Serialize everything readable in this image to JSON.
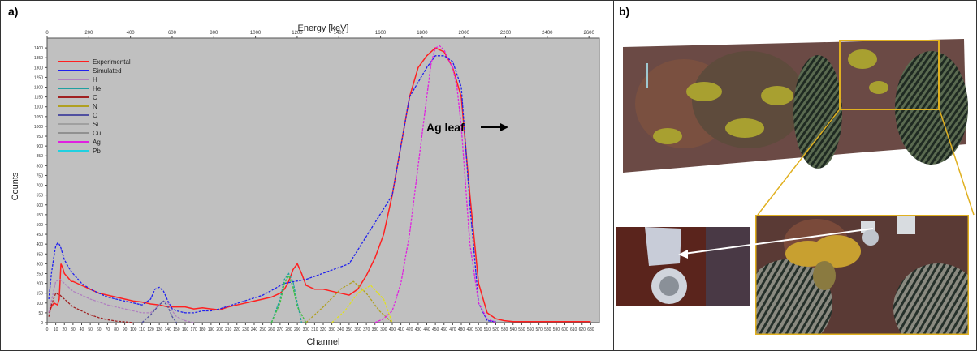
{
  "panels": {
    "a_label": "a)",
    "b_label": "b)"
  },
  "chart_data": {
    "type": "line",
    "top_axis_label": "Energy [keV]",
    "xlabel": "Channel",
    "ylabel": "Counts",
    "annotation": "Ag leaf",
    "xlim": [
      0,
      640
    ],
    "ylim": [
      0,
      1450
    ],
    "energy_ticks": [
      0,
      200,
      400,
      600,
      800,
      1000,
      1200,
      1400,
      1600,
      1800,
      2000,
      2200,
      2400,
      2600
    ],
    "channel_ticks": [
      0,
      10,
      20,
      30,
      40,
      50,
      60,
      70,
      80,
      90,
      100,
      110,
      120,
      130,
      140,
      150,
      160,
      170,
      180,
      190,
      200,
      210,
      220,
      230,
      240,
      250,
      260,
      270,
      280,
      290,
      300,
      310,
      320,
      330,
      340,
      350,
      360,
      370,
      380,
      390,
      400,
      410,
      420,
      430,
      440,
      450,
      460,
      470,
      480,
      490,
      500,
      510,
      520,
      530,
      540,
      550,
      560,
      570,
      580,
      590,
      600,
      610,
      620,
      630
    ],
    "y_ticks": [
      0,
      50,
      100,
      150,
      200,
      250,
      300,
      350,
      400,
      450,
      500,
      550,
      600,
      650,
      700,
      750,
      800,
      850,
      900,
      950,
      1000,
      1050,
      1100,
      1150,
      1200,
      1250,
      1300,
      1350,
      1400
    ],
    "legend": [
      "Experimental",
      "Simulated",
      "H",
      "He",
      "C",
      "N",
      "O",
      "Si",
      "Cu",
      "Ag",
      "Pb"
    ],
    "series": [
      {
        "name": "Experimental",
        "color": "#ff2020",
        "x": [
          2,
          5,
          8,
          10,
          12,
          14,
          16,
          18,
          20,
          22,
          24,
          26,
          28,
          30,
          40,
          50,
          60,
          70,
          80,
          90,
          100,
          110,
          120,
          130,
          140,
          150,
          160,
          170,
          180,
          190,
          200,
          210,
          220,
          230,
          240,
          250,
          260,
          270,
          275,
          280,
          285,
          290,
          295,
          300,
          310,
          320,
          330,
          340,
          350,
          360,
          370,
          380,
          390,
          400,
          410,
          420,
          430,
          440,
          450,
          460,
          470,
          480,
          490,
          500,
          510,
          520,
          530,
          540,
          550,
          560,
          570,
          580,
          590,
          600,
          610,
          620,
          630
        ],
        "y": [
          50,
          80,
          100,
          95,
          90,
          120,
          300,
          280,
          250,
          240,
          230,
          220,
          210,
          210,
          190,
          170,
          150,
          140,
          130,
          120,
          110,
          105,
          95,
          90,
          80,
          80,
          80,
          70,
          75,
          70,
          65,
          80,
          90,
          100,
          110,
          120,
          130,
          150,
          170,
          210,
          270,
          300,
          250,
          190,
          170,
          170,
          160,
          150,
          140,
          170,
          240,
          330,
          450,
          650,
          900,
          1150,
          1300,
          1360,
          1400,
          1380,
          1300,
          1150,
          650,
          200,
          50,
          20,
          10,
          5,
          5,
          5,
          5,
          5,
          5,
          5,
          5,
          5,
          5
        ]
      },
      {
        "name": "Simulated",
        "color": "#2020ee",
        "x": [
          2,
          5,
          8,
          10,
          12,
          14,
          16,
          18,
          20,
          25,
          30,
          40,
          50,
          60,
          70,
          80,
          90,
          100,
          110,
          120,
          125,
          130,
          135,
          140,
          145,
          150,
          160,
          170,
          180,
          190,
          200,
          250,
          275,
          300,
          350,
          400,
          420,
          440,
          450,
          460,
          470,
          480,
          490,
          500,
          510,
          520
        ],
        "y": [
          120,
          250,
          340,
          390,
          405,
          400,
          380,
          350,
          320,
          280,
          250,
          200,
          170,
          150,
          130,
          120,
          110,
          100,
          90,
          120,
          170,
          180,
          160,
          110,
          70,
          60,
          50,
          50,
          60,
          60,
          70,
          140,
          200,
          220,
          300,
          650,
          1150,
          1300,
          1360,
          1360,
          1330,
          1200,
          600,
          100,
          10,
          5
        ]
      },
      {
        "name": "H",
        "color": "#b080c0",
        "x": [
          2,
          5,
          10,
          15,
          20,
          30,
          40,
          50,
          60,
          70,
          80,
          90,
          100,
          110,
          120,
          130,
          135,
          140,
          145,
          150,
          160,
          170
        ],
        "y": [
          50,
          110,
          210,
          220,
          200,
          160,
          140,
          120,
          105,
          90,
          80,
          70,
          60,
          50,
          50,
          90,
          110,
          100,
          60,
          30,
          10,
          0
        ]
      },
      {
        "name": "He",
        "color": "#20a0a0",
        "x": [
          260,
          270,
          275,
          280,
          285,
          290,
          295
        ],
        "y": [
          0,
          120,
          220,
          250,
          210,
          100,
          0
        ]
      },
      {
        "name": "C",
        "color": "#a02020",
        "x": [
          2,
          5,
          10,
          15,
          20,
          30,
          40,
          50,
          60,
          70,
          80,
          90,
          100
        ],
        "y": [
          30,
          90,
          150,
          140,
          120,
          80,
          60,
          40,
          25,
          15,
          8,
          4,
          0
        ]
      },
      {
        "name": "N",
        "color": "#b0a020",
        "x": [
          300,
          320,
          340,
          355,
          370,
          385,
          400
        ],
        "y": [
          0,
          80,
          170,
          210,
          150,
          60,
          0
        ]
      },
      {
        "name": "O",
        "color": "#5050a0",
        "x": [
          110,
          120,
          130,
          135,
          140,
          145,
          150
        ],
        "y": [
          0,
          40,
          90,
          110,
          80,
          30,
          0
        ]
      },
      {
        "name": "Si",
        "color": "#a0a0a0",
        "x": [
          0
        ],
        "y": [
          0
        ]
      },
      {
        "name": "Cu",
        "color": "#909090",
        "x": [
          0
        ],
        "y": [
          0
        ]
      },
      {
        "name": "Ag",
        "color": "#e020e0",
        "x": [
          380,
          390,
          400,
          410,
          420,
          430,
          440,
          445,
          450,
          455,
          460,
          465,
          470,
          475,
          480,
          485,
          490,
          500,
          510,
          520
        ],
        "y": [
          0,
          20,
          60,
          200,
          450,
          800,
          1150,
          1320,
          1400,
          1410,
          1390,
          1340,
          1300,
          1200,
          1000,
          700,
          400,
          100,
          20,
          0
        ]
      },
      {
        "name": "Pb",
        "color": "#20d0e0",
        "x": [
          0
        ],
        "y": [
          0
        ]
      },
      {
        "name": "",
        "color": "#40c040",
        "x": [
          260,
          270,
          275,
          280,
          285,
          290,
          300
        ],
        "y": [
          0,
          100,
          200,
          240,
          180,
          80,
          0
        ]
      },
      {
        "name": "",
        "color": "#e0e020",
        "x": [
          330,
          345,
          360,
          375,
          390,
          400
        ],
        "y": [
          0,
          60,
          150,
          190,
          120,
          0
        ]
      }
    ]
  }
}
